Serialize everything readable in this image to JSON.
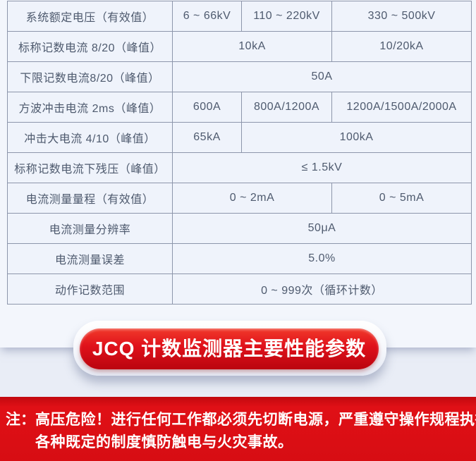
{
  "table": {
    "rows": [
      {
        "label": "系统额定电压（有效值）",
        "cells": [
          {
            "text": "6 ~ 66kV",
            "span": 1
          },
          {
            "text": "110 ~ 220kV",
            "span": 1
          },
          {
            "text": "330 ~ 500kV",
            "span": 1
          }
        ]
      },
      {
        "label": "标称记数电流 8/20（峰值）",
        "cells": [
          {
            "text": "10kA",
            "span": 2
          },
          {
            "text": "10/20kA",
            "span": 1
          }
        ]
      },
      {
        "label": "下限记数电流8/20（峰值）",
        "cells": [
          {
            "text": "50A",
            "span": 3
          }
        ]
      },
      {
        "label": "方波冲击电流 2ms（峰值）",
        "cells": [
          {
            "text": "600A",
            "span": 1
          },
          {
            "text": "800A/1200A",
            "span": 1
          },
          {
            "text": "1200A/1500A/2000A",
            "span": 1
          }
        ]
      },
      {
        "label": "冲击大电流 4/10（峰值）",
        "cells": [
          {
            "text": "65kA",
            "span": 1
          },
          {
            "text": "100kA",
            "span": 2
          }
        ]
      },
      {
        "label": "标称记数电流下残压（峰值）",
        "cells": [
          {
            "text": "≤ 1.5kV",
            "span": 3
          }
        ]
      },
      {
        "label": "电流测量量程（有效值）",
        "cells": [
          {
            "text": "0 ~ 2mA",
            "span": 2
          },
          {
            "text": "0 ~ 5mA",
            "span": 1
          }
        ]
      },
      {
        "label": "电流测量分辨率",
        "cells": [
          {
            "text": "50μA",
            "span": 3
          }
        ]
      },
      {
        "label": "电流测量误差",
        "cells": [
          {
            "text": "5.0%",
            "span": 3
          }
        ]
      },
      {
        "label": "动作记数范围",
        "cells": [
          {
            "text": "0 ~ 999次（循环计数）",
            "span": 3
          }
        ]
      }
    ]
  },
  "banner": {
    "title": "JCQ 计数监测器主要性能参数"
  },
  "warning": {
    "prefix": "注：",
    "line1": "高压危险！进行任何工作都必须先切断电源，严重遵守操作规程执行",
    "line2": "各种既定的制度慎防触电与火灾事故。"
  },
  "colors": {
    "accent_red": "#e0121b",
    "warning_band_red": "#d70d13",
    "table_border": "#8d96ab",
    "table_text": "#4e5a6e",
    "table_cell_bg": "#eff3fb",
    "section_bg": "#f3f6fc",
    "page_bg": "#eceff8",
    "banner_text": "#ffffff"
  }
}
